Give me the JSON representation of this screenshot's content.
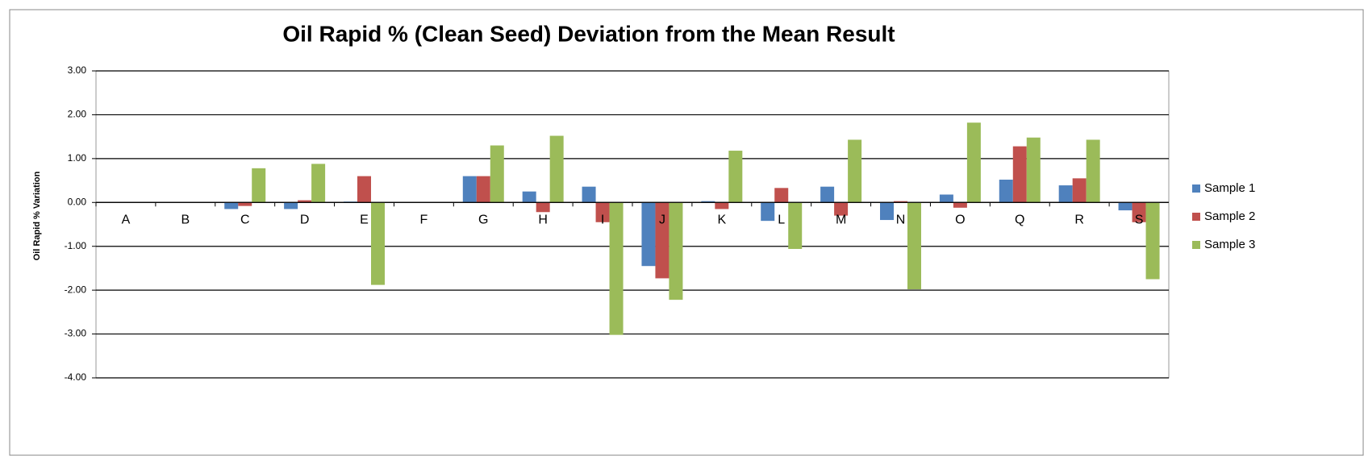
{
  "chart_data": {
    "type": "bar",
    "title": "Oil Rapid % (Clean Seed) Deviation from the Mean Result",
    "y_label": "Oil Rapid % Variation",
    "categories": [
      "A",
      "B",
      "C",
      "D",
      "E",
      "F",
      "G",
      "H",
      "I",
      "J",
      "K",
      "L",
      "M",
      "N",
      "O",
      "Q",
      "R",
      "S"
    ],
    "series": [
      {
        "name": "Sample 1",
        "color": "#4f81bd",
        "values": [
          0,
          0,
          -0.15,
          -0.15,
          0.02,
          0,
          0.6,
          0.25,
          0.36,
          -1.45,
          0.03,
          -0.42,
          0.36,
          -0.4,
          0.18,
          0.52,
          0.39,
          -0.18
        ]
      },
      {
        "name": "Sample 2",
        "color": "#c0504d",
        "values": [
          0,
          0,
          -0.08,
          0.05,
          0.6,
          0,
          0.6,
          -0.22,
          -0.45,
          -1.73,
          -0.15,
          0.33,
          -0.3,
          0.03,
          -0.12,
          1.28,
          0.55,
          -0.45
        ]
      },
      {
        "name": "Sample 3",
        "color": "#9bbb59",
        "values": [
          0,
          0,
          0.78,
          0.88,
          -1.88,
          0,
          1.3,
          1.52,
          -3.02,
          -2.22,
          1.18,
          -1.06,
          1.43,
          -1.98,
          1.82,
          1.48,
          1.43,
          -1.75
        ]
      }
    ],
    "ylim": [
      -4,
      3
    ],
    "yticks": [
      {
        "value": -4,
        "label": "-4.00"
      },
      {
        "value": -3,
        "label": "-3.00"
      },
      {
        "value": -2,
        "label": "-2.00"
      },
      {
        "value": -1,
        "label": "-1.00"
      },
      {
        "value": 0,
        "label": "0.00"
      },
      {
        "value": 1,
        "label": "1.00"
      },
      {
        "value": 2,
        "label": "2.00"
      },
      {
        "value": 3,
        "label": "3.00"
      }
    ],
    "grid": true,
    "legend": "right"
  }
}
